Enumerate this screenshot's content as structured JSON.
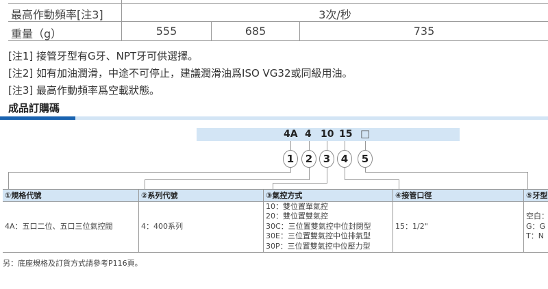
{
  "spec_table": {
    "rows": [
      {
        "label": "最高作動頻率[注3]",
        "values": [
          "3次/秒"
        ]
      },
      {
        "label": "重量（g）",
        "values": [
          "555",
          "685",
          "735"
        ]
      }
    ]
  },
  "notes": [
    "[注1] 接管牙型有G牙、NPT牙可供選擇。",
    "[注2] 如有加油潤滑，中途不可停止，建議潤滑油爲ISO VG32或同級用油。",
    "[注3] 最高作動頻率爲空載狀態。"
  ],
  "order_section": {
    "title": "成品訂購碼",
    "code": [
      "4A",
      "4",
      "10",
      "15",
      "□"
    ],
    "markers": [
      "1",
      "2",
      "3",
      "4",
      "5"
    ],
    "columns": [
      {
        "header": "①規格代號",
        "items": [
          "4A：五口二位、五口三位氣控閥"
        ]
      },
      {
        "header": "②系列代號",
        "items": [
          "4：400系列"
        ]
      },
      {
        "header": "③氣控方式",
        "items": [
          "10：雙位置單氣控",
          "20：雙位置雙氣控",
          "30C：三位置雙氣控中位封閉型",
          "30E：三位置雙氣控中位排氣型",
          "30P：三位置雙氣控中位壓力型"
        ]
      },
      {
        "header": "④接管口徑",
        "items": [
          "15：1/2\""
        ]
      },
      {
        "header": "⑤牙型",
        "items": [
          "空白：",
          "G：G",
          "T：N"
        ]
      }
    ],
    "footnote": "另：底座規格及訂貨方式請參考P116頁。"
  },
  "colors": {
    "accent_dark": "#1a63b0",
    "accent_light": "#d3e5f5"
  }
}
